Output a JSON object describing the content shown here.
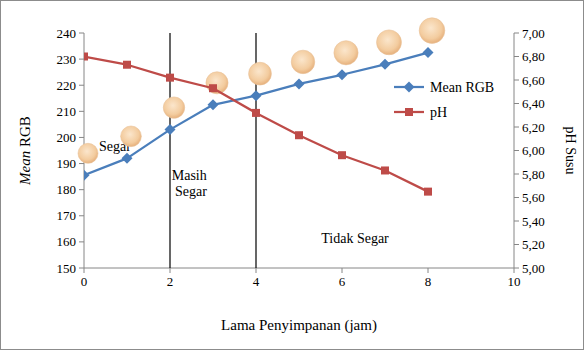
{
  "chart_data": {
    "type": "line",
    "x_label": "Lama Penyimpanan (jam)",
    "y_label": "Mean RGB",
    "y2_label": "pH Susu",
    "x": [
      0,
      1,
      2,
      3,
      4,
      5,
      6,
      7,
      8
    ],
    "series": [
      {
        "name": "Mean RGB",
        "color": "#4a7ebb",
        "marker": "diamond",
        "values": [
          185.5,
          192,
          203,
          212.5,
          216,
          220.5,
          224,
          228,
          232.5
        ]
      },
      {
        "name": "pH",
        "color": "#be4b48",
        "marker": "square",
        "axis": "y2",
        "values": [
          6.8,
          6.73,
          6.62,
          6.53,
          6.32,
          6.13,
          5.96,
          5.83,
          5.65
        ]
      }
    ],
    "xlim": [
      0,
      10
    ],
    "xticks": [
      0,
      2,
      4,
      6,
      8,
      10
    ],
    "ylim": [
      150,
      240
    ],
    "yticks": [
      150,
      160,
      170,
      180,
      190,
      200,
      210,
      220,
      230,
      240
    ],
    "y2lim": [
      5,
      7
    ],
    "y2ticks": [
      {
        "value": 5,
        "label": "5,00"
      },
      {
        "value": 5.2,
        "label": "5,20"
      },
      {
        "value": 5.4,
        "label": "5,40"
      },
      {
        "value": 5.6,
        "label": "5,60"
      },
      {
        "value": 5.8,
        "label": "5,80"
      },
      {
        "value": 6,
        "label": "6,00"
      },
      {
        "value": 6.2,
        "label": "6,20"
      },
      {
        "value": 6.4,
        "label": "6,40"
      },
      {
        "value": 6.6,
        "label": "6,60"
      },
      {
        "value": 6.8,
        "label": "6,80"
      },
      {
        "value": 7,
        "label": "7,00"
      }
    ],
    "vlines": [
      2,
      4
    ],
    "annotations": [
      "Segar",
      "Masih Segar",
      "Tidak Segar"
    ],
    "grid": false,
    "legend": "right"
  }
}
